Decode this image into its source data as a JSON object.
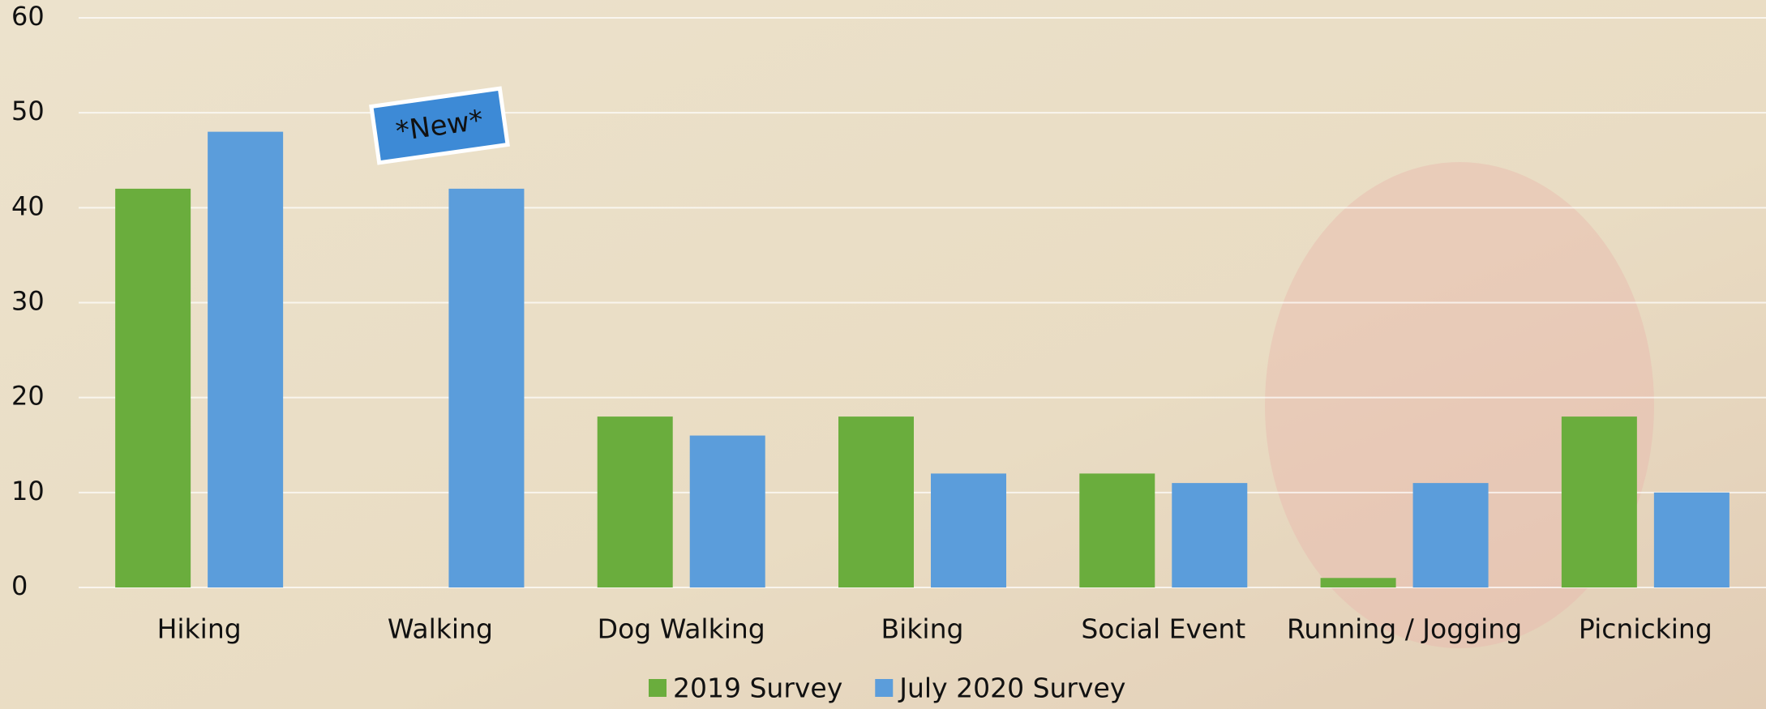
{
  "chart_data": {
    "type": "bar",
    "categories": [
      "Hiking",
      "Walking",
      "Dog Walking",
      "Biking",
      "Social Event",
      "Running / Jogging",
      "Picnicking"
    ],
    "series": [
      {
        "name": "2019 Survey",
        "color": "#6aad3d",
        "values": [
          42,
          null,
          18,
          18,
          12,
          1,
          18
        ]
      },
      {
        "name": "July 2020 Survey",
        "color": "#5b9ddb",
        "values": [
          48,
          42,
          16,
          12,
          11,
          11,
          10
        ]
      }
    ],
    "ylim": [
      0,
      60
    ],
    "yticks": [
      0,
      10,
      20,
      30,
      40,
      50,
      60
    ],
    "grid": true,
    "annotation": "*New*",
    "legend": "bottom"
  }
}
